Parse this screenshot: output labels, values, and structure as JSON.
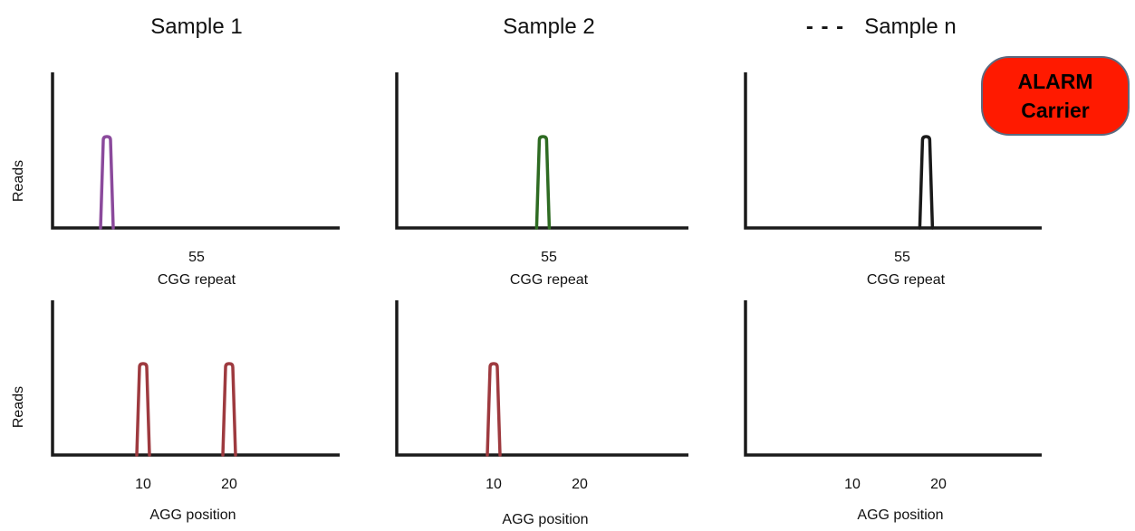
{
  "columns": [
    {
      "title": "Sample 1"
    },
    {
      "title": "Sample 2"
    },
    {
      "title": "Sample n",
      "title_prefix": "- - -"
    }
  ],
  "row_labels": {
    "top": "Reads",
    "bottom": "Reads"
  },
  "cgg": {
    "axis_title": "CGG repeat",
    "tick_label": "55",
    "tick_value": 55,
    "xlim": [
      30,
      80
    ],
    "peaks": [
      {
        "sample": "Sample 1",
        "value": 40,
        "color": "#8b4a9c"
      },
      {
        "sample": "Sample 2",
        "value": 54,
        "color": "#2e6b22"
      },
      {
        "sample": "Sample n",
        "value": 59,
        "color": "#1a1a1a"
      }
    ]
  },
  "agg": {
    "axis_title": "AGG position",
    "ticks": [
      10,
      20
    ],
    "xlim": [
      -2,
      36
    ],
    "peaks": [
      {
        "sample": "Sample 1",
        "values": [
          10,
          20
        ],
        "color": "#9e3a3f"
      },
      {
        "sample": "Sample 2",
        "values": [
          10
        ],
        "color": "#9e3a3f"
      },
      {
        "sample": "Sample n",
        "values": [],
        "color": "#9e3a3f"
      }
    ]
  },
  "badge": {
    "line1": "ALARM",
    "line2": "Carrier",
    "fill": "#ff1a00",
    "border": "#5a6a80"
  }
}
